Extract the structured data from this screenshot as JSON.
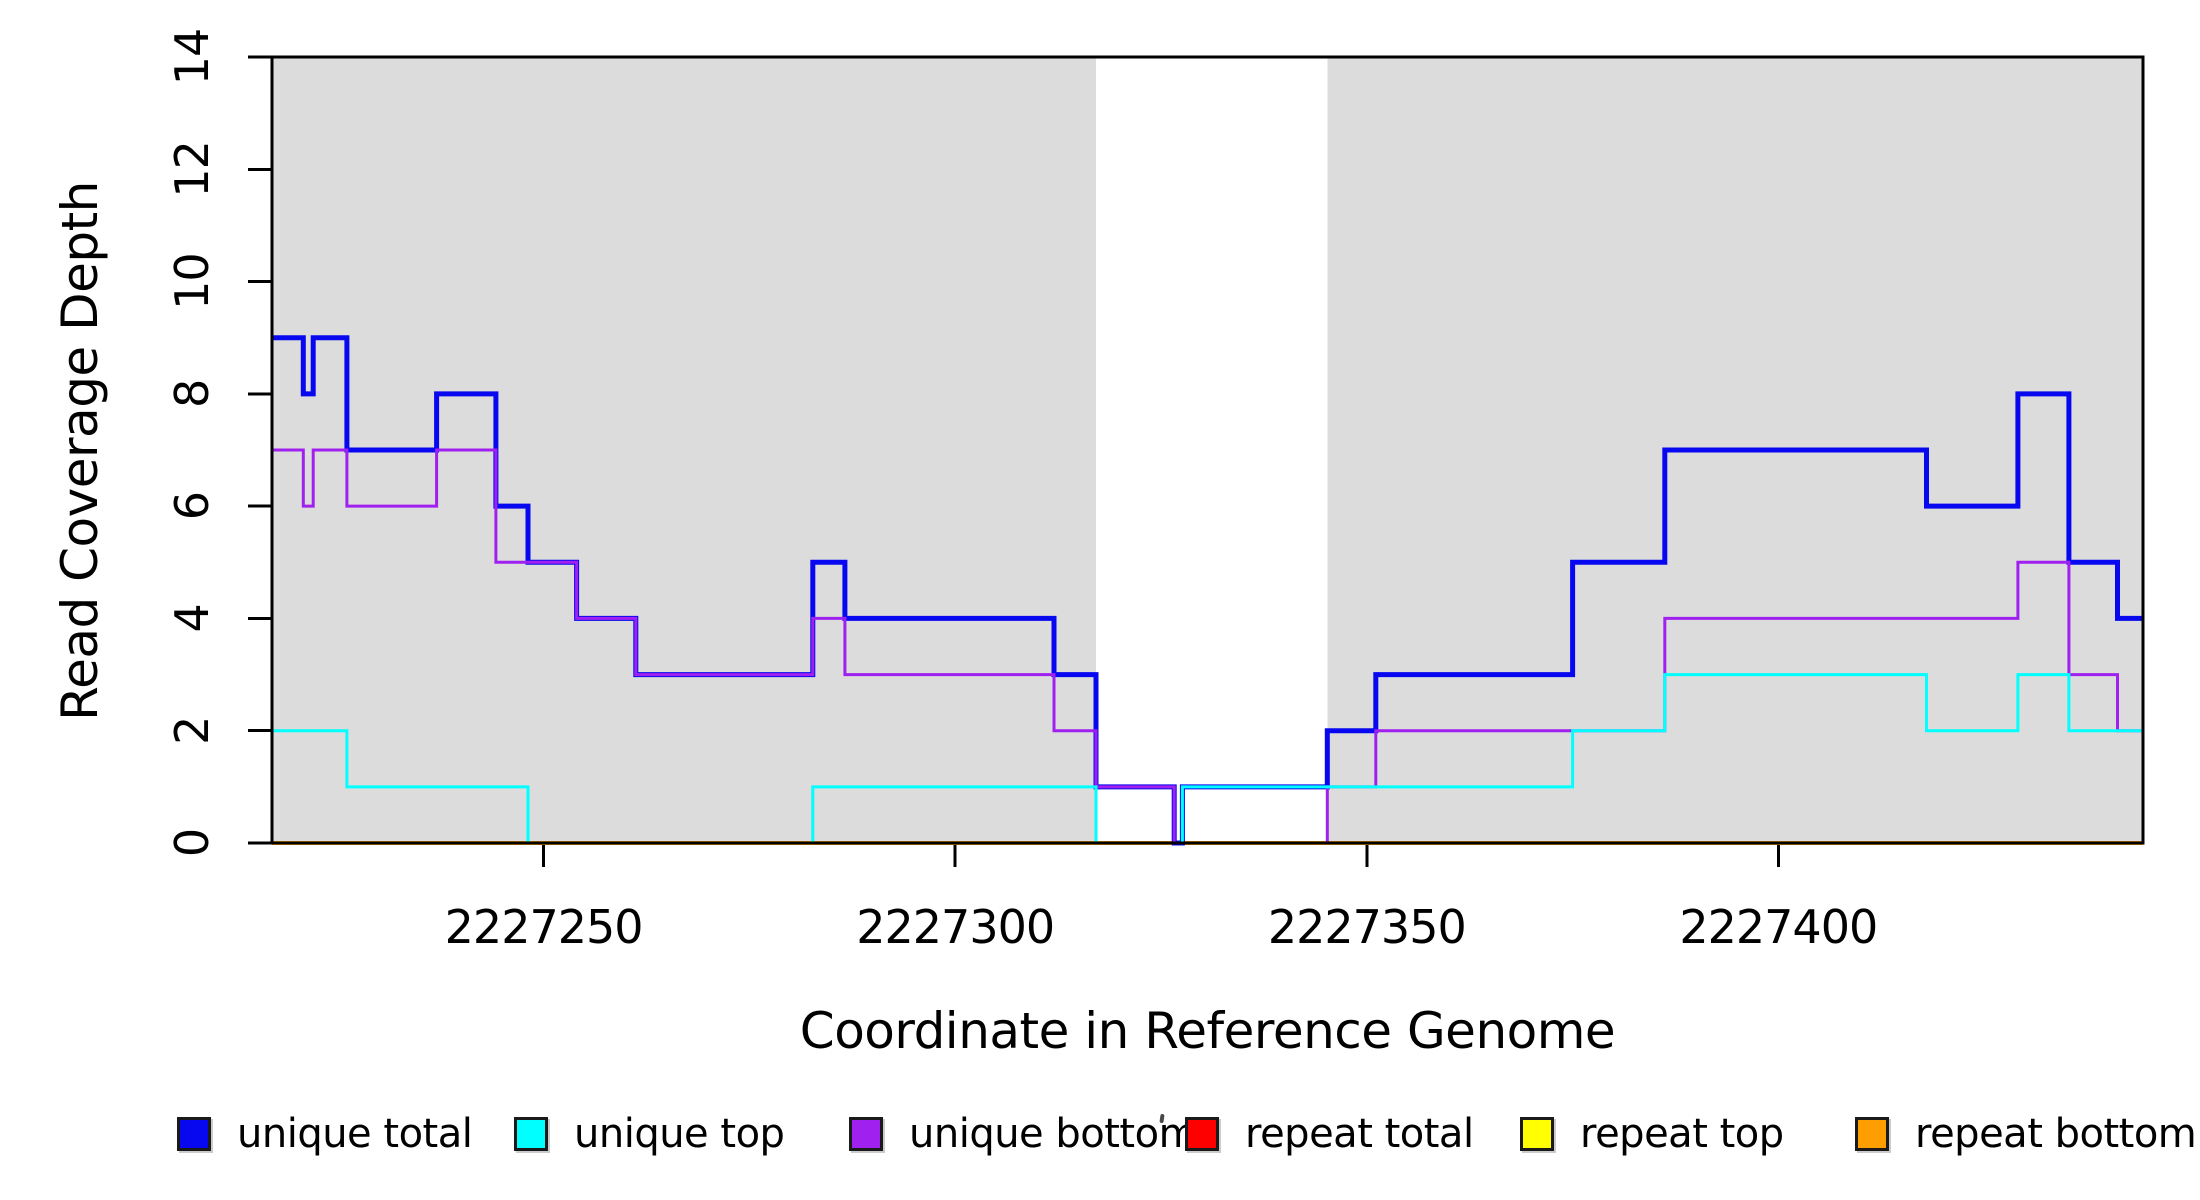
{
  "chart_data": {
    "type": "line",
    "subtype": "step-coverage-plot",
    "title": "",
    "xlabel": "Coordinate in Reference Genome",
    "ylabel": "Read Coverage Depth",
    "xlim": [
      2227217.0,
      2227444.3
    ],
    "ylim": [
      0,
      14
    ],
    "x_ticks": [
      2227250,
      2227300,
      2227350,
      2227400
    ],
    "x_tick_labels": [
      "2227250",
      "2227300",
      "2227350",
      "2227400"
    ],
    "y_ticks": [
      0,
      2,
      4,
      6,
      8,
      10,
      12,
      14
    ],
    "y_tick_labels": [
      "0",
      "2",
      "4",
      "6",
      "8",
      "10",
      "12",
      "14"
    ],
    "grid": false,
    "frame_color": "#000000",
    "shade_color": "#DCDCDC",
    "shaded_regions": [
      {
        "from": 2227217.0,
        "to": 2227317.1
      },
      {
        "from": 2227345.2,
        "to": 2227444.3
      }
    ],
    "series": [
      {
        "name": "unique total",
        "color": "#0808F0",
        "line_width": 5,
        "steps": [
          [
            2227217.0,
            9
          ],
          [
            2227220.8,
            8
          ],
          [
            2227222.0,
            9
          ],
          [
            2227226.1,
            7
          ],
          [
            2227237.0,
            8
          ],
          [
            2227244.2,
            6
          ],
          [
            2227248.1,
            5
          ],
          [
            2227254.0,
            4
          ],
          [
            2227261.2,
            3
          ],
          [
            2227282.7,
            5
          ],
          [
            2227286.6,
            4
          ],
          [
            2227312.0,
            3
          ],
          [
            2227317.1,
            1
          ],
          [
            2227326.6,
            0
          ],
          [
            2227327.6,
            1
          ],
          [
            2227345.2,
            2
          ],
          [
            2227351.1,
            3
          ],
          [
            2227375.0,
            5
          ],
          [
            2227386.2,
            7
          ],
          [
            2227418.0,
            6
          ],
          [
            2227429.1,
            8
          ],
          [
            2227435.3,
            5
          ],
          [
            2227441.2,
            4
          ]
        ]
      },
      {
        "name": "unique top",
        "color": "#00FFFF",
        "line_width": 3,
        "steps": [
          [
            2227217.0,
            2
          ],
          [
            2227226.1,
            1
          ],
          [
            2227248.1,
            0
          ],
          [
            2227282.7,
            1
          ],
          [
            2227317.1,
            0
          ],
          [
            2227327.6,
            1
          ],
          [
            2227375.0,
            2
          ],
          [
            2227386.2,
            3
          ],
          [
            2227418.0,
            2
          ],
          [
            2227429.1,
            3
          ],
          [
            2227435.3,
            2
          ]
        ]
      },
      {
        "name": "unique bottom",
        "color": "#A020F0",
        "line_width": 3,
        "steps": [
          [
            2227217.0,
            7
          ],
          [
            2227220.8,
            6
          ],
          [
            2227222.0,
            7
          ],
          [
            2227226.1,
            6
          ],
          [
            2227237.0,
            7
          ],
          [
            2227244.2,
            5
          ],
          [
            2227254.0,
            4
          ],
          [
            2227261.2,
            3
          ],
          [
            2227282.7,
            4
          ],
          [
            2227286.6,
            3
          ],
          [
            2227312.0,
            2
          ],
          [
            2227317.1,
            1
          ],
          [
            2227326.6,
            0
          ],
          [
            2227345.2,
            1
          ],
          [
            2227351.1,
            2
          ],
          [
            2227386.2,
            4
          ],
          [
            2227429.1,
            5
          ],
          [
            2227435.3,
            3
          ],
          [
            2227441.2,
            2
          ]
        ]
      },
      {
        "name": "repeat total",
        "color": "#FF0000",
        "line_width": 3,
        "steps": [
          [
            2227217.0,
            0
          ]
        ]
      },
      {
        "name": "repeat top",
        "color": "#FFFF00",
        "line_width": 3,
        "steps": [
          [
            2227217.0,
            0
          ]
        ]
      },
      {
        "name": "repeat bottom",
        "color": "#FF9E00",
        "line_width": 4,
        "steps": [
          [
            2227217.0,
            0
          ]
        ]
      }
    ],
    "legend_position": "bottom"
  },
  "legend": {
    "items": [
      {
        "label": "unique total",
        "color": "#0808F0"
      },
      {
        "label": "unique top",
        "color": "#00FFFF"
      },
      {
        "label": "unique bottom",
        "color": "#A020F0"
      },
      {
        "label": "repeat total",
        "color": "#FF0000"
      },
      {
        "label": "repeat top",
        "color": "#FFFF00"
      },
      {
        "label": "repeat bottom",
        "color": "#FF9E00"
      }
    ]
  }
}
